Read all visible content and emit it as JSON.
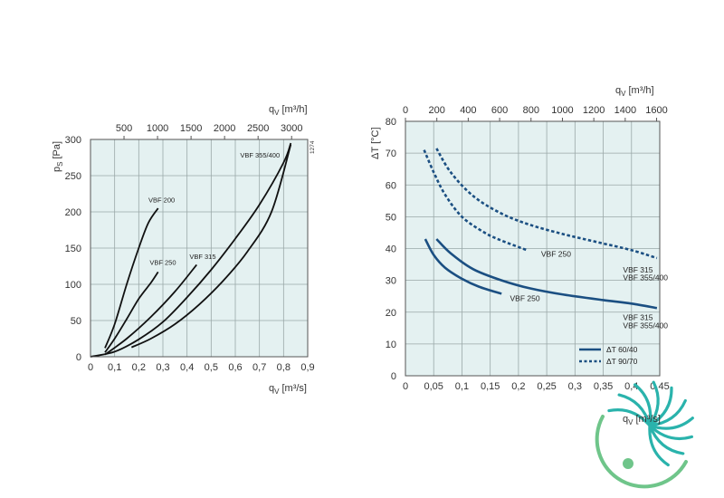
{
  "chart_data": [
    {
      "type": "line",
      "ylabel": "p",
      "ylabel_sub": "S",
      "ylabel_unit": "[Pa]",
      "xlabel": "q",
      "xlabel_sub": "V",
      "xlabel_unit": "[m³/s]",
      "top_xlabel": "q",
      "top_xlabel_sub": "V",
      "top_xlabel_unit": "[m³/h]",
      "side_code": "1274",
      "xlim": [
        0,
        0.9
      ],
      "ylim": [
        0,
        300
      ],
      "xticks": [
        "0",
        "0,1",
        "0,2",
        "0,3",
        "0,4",
        "0,5",
        "0,6",
        "0,7",
        "0,8",
        "0,9"
      ],
      "yticks": [
        "0",
        "50",
        "100",
        "150",
        "200",
        "250",
        "300"
      ],
      "top_xlim": [
        0,
        3240
      ],
      "top_xticks": [
        {
          "value": 500,
          "label": "500"
        },
        {
          "value": 1000,
          "label": "1000"
        },
        {
          "value": 1500,
          "label": "1500"
        },
        {
          "value": 2000,
          "label": "2000"
        },
        {
          "value": 2500,
          "label": "2500"
        },
        {
          "value": 3000,
          "label": "3000"
        }
      ],
      "grid": true,
      "series": [
        {
          "name": "VBF 200",
          "label_at": [
            0.24,
            213
          ],
          "points": [
            [
              0.06,
              12
            ],
            [
              0.1,
              45
            ],
            [
              0.15,
              100
            ],
            [
              0.2,
              150
            ],
            [
              0.24,
              185
            ],
            [
              0.28,
              205
            ]
          ]
        },
        {
          "name": "VBF 250",
          "label_at": [
            0.245,
            127
          ],
          "points": [
            [
              0.06,
              6
            ],
            [
              0.1,
              25
            ],
            [
              0.15,
              52
            ],
            [
              0.2,
              80
            ],
            [
              0.25,
              102
            ],
            [
              0.28,
              117
            ]
          ]
        },
        {
          "name": "VBF 315",
          "label_at": [
            0.41,
            135
          ],
          "points": [
            [
              0.06,
              3
            ],
            [
              0.15,
              25
            ],
            [
              0.25,
              55
            ],
            [
              0.35,
              90
            ],
            [
              0.44,
              127
            ]
          ]
        },
        {
          "name": "VBF 355/400",
          "label_at": [
            0.62,
            275
          ],
          "points": [
            [
              0.0,
              0
            ],
            [
              0.1,
              7
            ],
            [
              0.2,
              24
            ],
            [
              0.3,
              48
            ],
            [
              0.4,
              82
            ],
            [
              0.5,
              120
            ],
            [
              0.6,
              163
            ],
            [
              0.7,
              210
            ],
            [
              0.8,
              268
            ],
            [
              0.83,
              295
            ]
          ]
        },
        {
          "name": "",
          "points": [
            [
              0.17,
              13
            ],
            [
              0.25,
              25
            ],
            [
              0.35,
              45
            ],
            [
              0.45,
              72
            ],
            [
              0.55,
              105
            ],
            [
              0.65,
              145
            ],
            [
              0.75,
              200
            ],
            [
              0.83,
              293
            ]
          ]
        }
      ]
    },
    {
      "type": "line",
      "ylabel": "ΔT",
      "ylabel_unit": "[°C]",
      "xlabel": "q",
      "xlabel_sub": "V",
      "xlabel_unit": "[m³/s]",
      "top_xlabel": "q",
      "top_xlabel_sub": "V",
      "top_xlabel_unit": "[m³/h]",
      "xlim": [
        0,
        0.45
      ],
      "ylim": [
        0,
        80
      ],
      "xticks": [
        "0",
        "0,05",
        "0,1",
        "0,15",
        "0,2",
        "0,25",
        "0,3",
        "0,35",
        "0,4",
        "0,45"
      ],
      "yticks": [
        "0",
        "10",
        "20",
        "30",
        "40",
        "50",
        "60",
        "70",
        "80"
      ],
      "top_xlim": [
        0,
        1620
      ],
      "top_xticks": [
        {
          "value": 0,
          "label": "0"
        },
        {
          "value": 200,
          "label": "200"
        },
        {
          "value": 400,
          "label": "400"
        },
        {
          "value": 600,
          "label": "600"
        },
        {
          "value": 800,
          "label": "800"
        },
        {
          "value": 1000,
          "label": "1000"
        },
        {
          "value": 1200,
          "label": "1200"
        },
        {
          "value": 1400,
          "label": "1400"
        },
        {
          "value": 1600,
          "label": "1600"
        }
      ],
      "grid": true,
      "legend": {
        "position": "bottom-right",
        "entries": [
          {
            "label": "ΔT 60/40",
            "style": "solid"
          },
          {
            "label": "ΔT 90/70",
            "style": "dotted"
          }
        ]
      },
      "series_color": "#1b4f82",
      "series": [
        {
          "name": "ΔT 60/40 VBF 250",
          "style": "solid",
          "points": [
            [
              0.035,
              43
            ],
            [
              0.05,
              38
            ],
            [
              0.07,
              34
            ],
            [
              0.1,
              30.5
            ],
            [
              0.13,
              28
            ],
            [
              0.17,
              25.8
            ]
          ]
        },
        {
          "name": "ΔT 60/40 VBF 315 / VBF 355/400",
          "style": "solid",
          "points": [
            [
              0.055,
              43
            ],
            [
              0.08,
              38.5
            ],
            [
              0.12,
              33.5
            ],
            [
              0.17,
              30
            ],
            [
              0.22,
              27.5
            ],
            [
              0.28,
              25.5
            ],
            [
              0.35,
              23.8
            ],
            [
              0.4,
              22.7
            ],
            [
              0.445,
              21.3
            ]
          ]
        },
        {
          "name": "ΔT 90/70 VBF 250",
          "style": "dotted",
          "points": [
            [
              0.033,
              71
            ],
            [
              0.05,
              64
            ],
            [
              0.07,
              57
            ],
            [
              0.1,
              50
            ],
            [
              0.14,
              45
            ],
            [
              0.17,
              42.5
            ],
            [
              0.215,
              39.5
            ]
          ]
        },
        {
          "name": "ΔT 90/70 VBF 315 / VBF 355/400",
          "style": "dotted",
          "points": [
            [
              0.055,
              71.5
            ],
            [
              0.08,
              64
            ],
            [
              0.12,
              56.5
            ],
            [
              0.17,
              51
            ],
            [
              0.22,
              47.5
            ],
            [
              0.28,
              44.5
            ],
            [
              0.34,
              42
            ],
            [
              0.4,
              39.5
            ],
            [
              0.445,
              37
            ]
          ]
        }
      ],
      "curve_labels": [
        {
          "text": "VBF 250",
          "at": [
            0.24,
            37.5
          ]
        },
        {
          "text": "VBF 315",
          "at": [
            0.385,
            32.5
          ]
        },
        {
          "text": "VBF 355/400",
          "at": [
            0.385,
            30
          ]
        },
        {
          "text": "VBF 250",
          "at": [
            0.185,
            23.5
          ]
        },
        {
          "text": "VBF 315",
          "at": [
            0.385,
            17.5
          ]
        },
        {
          "text": "VBF 355/400",
          "at": [
            0.385,
            15
          ]
        }
      ]
    }
  ],
  "logo": {
    "name": "brand-logo",
    "colors": [
      "#2ab3ac",
      "#6fc58a"
    ]
  }
}
